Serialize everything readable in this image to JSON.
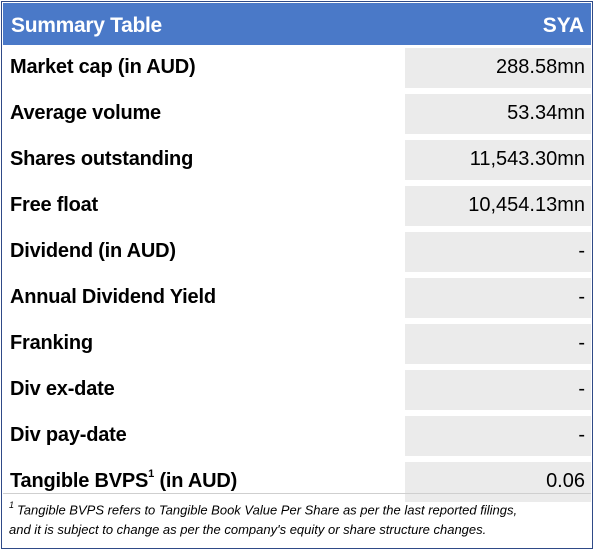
{
  "header": {
    "title": "Summary Table",
    "ticker": "SYA"
  },
  "rows": [
    {
      "label": "Market cap (in AUD)",
      "value": "288.58mn"
    },
    {
      "label": "Average volume",
      "value": "53.34mn"
    },
    {
      "label": "Shares outstanding",
      "value": "11,543.30mn"
    },
    {
      "label": "Free float",
      "value": "10,454.13mn"
    },
    {
      "label": "Dividend (in AUD)",
      "value": "-"
    },
    {
      "label": "Annual Dividend Yield",
      "value": "-"
    },
    {
      "label": "Franking",
      "value": "-"
    },
    {
      "label": "Div ex-date",
      "value": "-"
    },
    {
      "label": "Div pay-date",
      "value": "-"
    },
    {
      "label_prefix": "Tangible BVPS",
      "label_sup": "1",
      "label_suffix": " (in AUD)",
      "value": "0.06"
    }
  ],
  "footnote": {
    "marker": "1",
    "line1": "Tangible BVPS refers to Tangible Book Value Per Share as per the last reported filings,",
    "line2": "and it is subject to change as per the company's equity or share structure changes."
  }
}
